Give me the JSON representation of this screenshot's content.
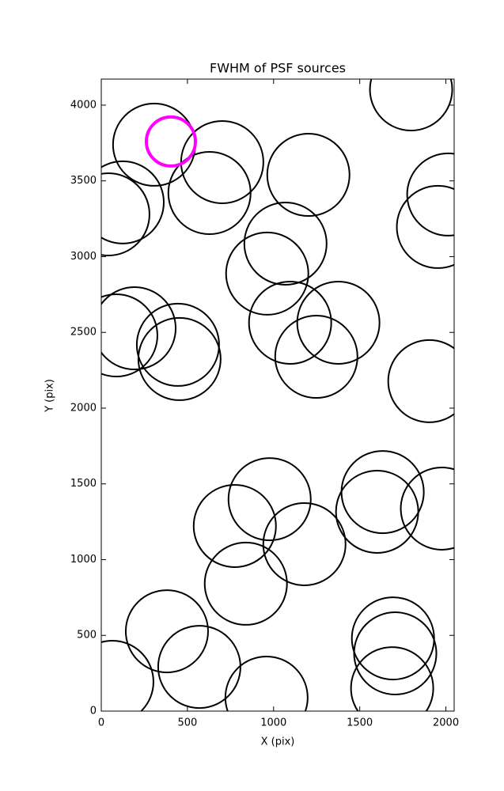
{
  "chart_data": {
    "type": "scatter",
    "title": "FWHM of PSF sources",
    "xlabel": "X (pix)",
    "ylabel": "Y (pix)",
    "xlim": [
      0,
      2048
    ],
    "ylim": [
      0,
      4172
    ],
    "xticks": [
      0,
      500,
      1000,
      1500,
      2000
    ],
    "yticks": [
      0,
      500,
      1000,
      1500,
      2000,
      2500,
      3000,
      3500,
      4000
    ],
    "series": [
      {
        "color": "#000000",
        "marker": "open-circle",
        "marker_radius": 52,
        "x": [
          1798,
          307,
          702,
          628,
          124,
          41,
          1202,
          1069,
          963,
          2014,
          1954,
          193,
          87,
          445,
          454,
          1096,
          1376,
          1248,
          1904,
          1633,
          1601,
          1977,
          977,
          775,
          1179,
          839,
          381,
          1693,
          1706,
          1688,
          64,
          569,
          959
        ],
        "values": [
          4104,
          3739,
          3624,
          3420,
          3358,
          3279,
          3540,
          3086,
          2888,
          3410,
          3196,
          2527,
          2480,
          2418,
          2324,
          2564,
          2564,
          2339,
          2178,
          1446,
          1316,
          1337,
          1399,
          1222,
          1102,
          841,
          527,
          480,
          381,
          151,
          193,
          292,
          89
        ]
      },
      {
        "color": "#ff00ff",
        "marker": "open-circle",
        "marker_radius": 31,
        "x": [
          404
        ],
        "values": [
          3760
        ]
      }
    ]
  }
}
